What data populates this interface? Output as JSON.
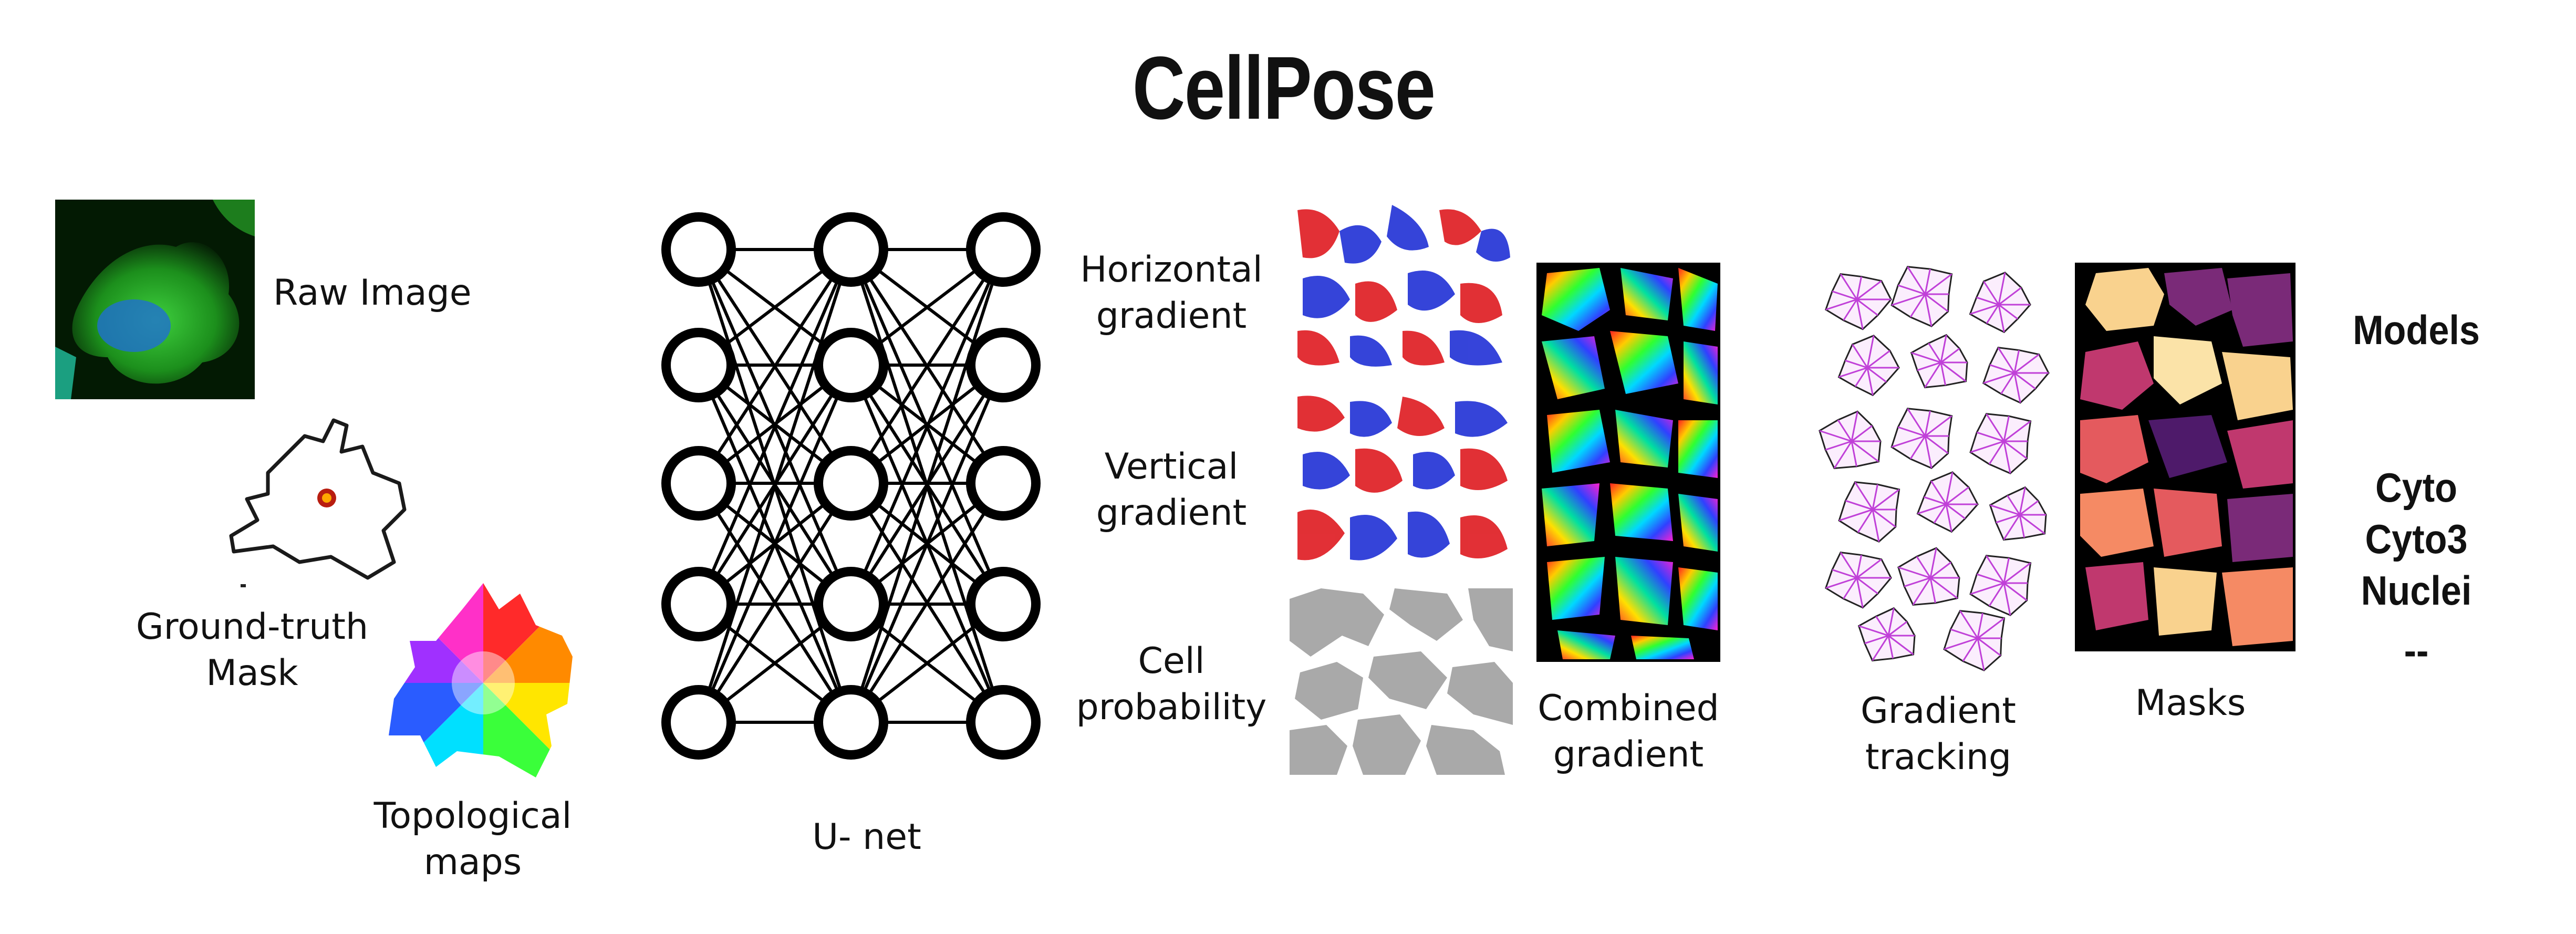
{
  "title": "CellPose",
  "inputs": {
    "raw_image": "Raw Image",
    "ground_truth_mask": "Ground-truth\nMask",
    "topological_maps": "Topological\nmaps"
  },
  "network": {
    "label": "U- net"
  },
  "outputs": {
    "horizontal_gradient": "Horizontal\ngradient",
    "vertical_gradient": "Vertical\ngradient",
    "cell_probability": "Cell\nprobability"
  },
  "panels": {
    "combined_gradient": "Combined\ngradient",
    "gradient_tracking": "Gradient\ntracking",
    "masks": "Masks"
  },
  "models": {
    "heading": "Models",
    "items": [
      "Cyto",
      "Cyto3",
      "Nuclei",
      "--"
    ]
  }
}
